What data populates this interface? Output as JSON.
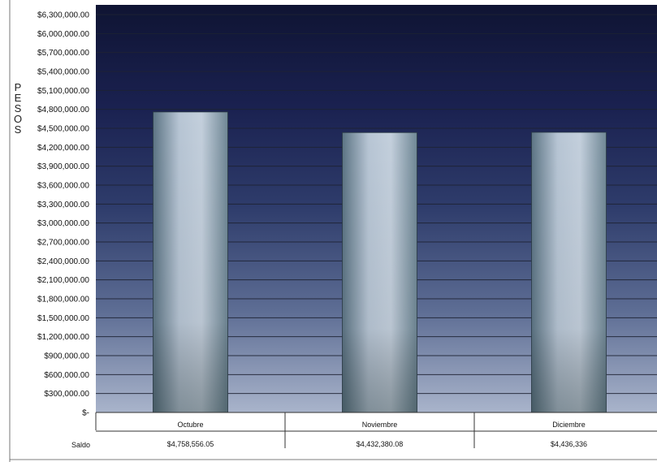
{
  "chart_data": {
    "type": "bar",
    "categories": [
      "Octubre",
      "Noviembre",
      "Diciembre"
    ],
    "series": [
      {
        "name": "Saldo",
        "values": [
          4758556.05,
          4432380.08,
          4436336
        ]
      }
    ],
    "table_values": [
      "$4,758,556.05",
      "$4,432,380.08",
      "$4,436,336"
    ],
    "y_ticks": [
      {
        "v": 0,
        "label": "$-"
      },
      {
        "v": 300000,
        "label": "$300,000.00"
      },
      {
        "v": 600000,
        "label": "$600,000.00"
      },
      {
        "v": 900000,
        "label": "$900,000.00"
      },
      {
        "v": 1200000,
        "label": "$1,200,000.00"
      },
      {
        "v": 1500000,
        "label": "$1,500,000.00"
      },
      {
        "v": 1800000,
        "label": "$1,800,000.00"
      },
      {
        "v": 2100000,
        "label": "$2,100,000.00"
      },
      {
        "v": 2400000,
        "label": "$2,400,000.00"
      },
      {
        "v": 2700000,
        "label": "$2,700,000.00"
      },
      {
        "v": 3000000,
        "label": "$3,000,000.00"
      },
      {
        "v": 3300000,
        "label": "$3,300,000.00"
      },
      {
        "v": 3600000,
        "label": "$3,600,000.00"
      },
      {
        "v": 3900000,
        "label": "$3,900,000.00"
      },
      {
        "v": 4200000,
        "label": "$4,200,000.00"
      },
      {
        "v": 4500000,
        "label": "$4,500,000.00"
      },
      {
        "v": 4800000,
        "label": "$4,800,000.00"
      },
      {
        "v": 5100000,
        "label": "$5,100,000.00"
      },
      {
        "v": 5400000,
        "label": "$5,400,000.00"
      },
      {
        "v": 5700000,
        "label": "$5,700,000.00"
      },
      {
        "v": 6000000,
        "label": "$6,000,000.00"
      },
      {
        "v": 6300000,
        "label": "$6,300,000.00"
      }
    ],
    "ylim": [
      0,
      6300000
    ],
    "ylabel": "PESOS",
    "grid": true,
    "legend": "data-table-bottom",
    "colors": {
      "background_top": "#141a3c",
      "background_mid": "#3c4a72",
      "background_bottom": "#9aa6bf",
      "bar_light": "#b9c6d6",
      "bar_dark": "#3b5260",
      "grid": "#222222"
    }
  }
}
